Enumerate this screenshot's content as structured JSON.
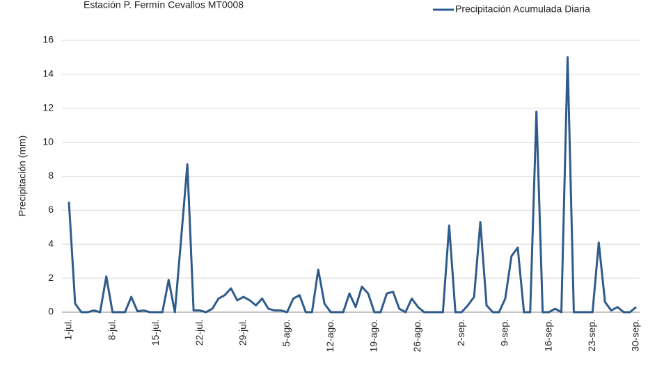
{
  "chart_data": {
    "type": "line",
    "title": "Estación  P. Fermín Cevallos MT0008",
    "y_label": "Precipitación (mm)",
    "categories": [
      "1-jul.",
      null,
      null,
      null,
      null,
      null,
      null,
      "8-jul.",
      null,
      null,
      null,
      null,
      null,
      null,
      "15-jul.",
      null,
      null,
      null,
      null,
      null,
      null,
      "22-jul.",
      null,
      null,
      null,
      null,
      null,
      null,
      "29-jul.",
      null,
      null,
      null,
      null,
      null,
      null,
      "5-ago.",
      null,
      null,
      null,
      null,
      null,
      null,
      "12-ago.",
      null,
      null,
      null,
      null,
      null,
      null,
      "19-ago.",
      null,
      null,
      null,
      null,
      null,
      null,
      "26-ago.",
      null,
      null,
      null,
      null,
      null,
      null,
      "2-sep.",
      null,
      null,
      null,
      null,
      null,
      null,
      "9-sep.",
      null,
      null,
      null,
      null,
      null,
      null,
      "16-sep.",
      null,
      null,
      null,
      null,
      null,
      null,
      "23-sep.",
      null,
      null,
      null,
      null,
      null,
      null,
      "30-sep."
    ],
    "series": [
      {
        "name": "Precipitación Acumulada Diaria",
        "color": "#2f5b8c",
        "values": [
          6.5,
          0.5,
          0,
          0,
          0.1,
          0,
          2.1,
          0,
          0,
          0,
          0.9,
          0.05,
          0.1,
          0,
          0,
          0,
          1.9,
          0,
          4.3,
          8.7,
          0.1,
          0.1,
          0,
          0.2,
          0.8,
          1.0,
          1.4,
          0.7,
          0.9,
          0.7,
          0.4,
          0.8,
          0.2,
          0.1,
          0.1,
          0,
          0.8,
          1.0,
          0,
          0,
          2.5,
          0.5,
          0,
          0,
          0,
          1.1,
          0.3,
          1.5,
          1.1,
          0,
          0,
          1.1,
          1.2,
          0.2,
          0,
          0.8,
          0.3,
          0,
          0,
          0,
          0,
          5.1,
          0,
          0,
          0.4,
          0.9,
          5.3,
          0.4,
          0,
          0,
          0.8,
          3.3,
          3.8,
          0,
          0,
          11.8,
          0,
          0,
          0.2,
          0,
          15.0,
          0,
          0,
          0,
          0,
          4.1,
          0.6,
          0.1,
          0.3,
          0,
          0,
          0.3
        ]
      }
    ],
    "ylim": [
      0,
      16
    ],
    "yticks": [
      0,
      2,
      4,
      6,
      8,
      10,
      12,
      14,
      16
    ],
    "grid": true,
    "legend": "top-right"
  }
}
